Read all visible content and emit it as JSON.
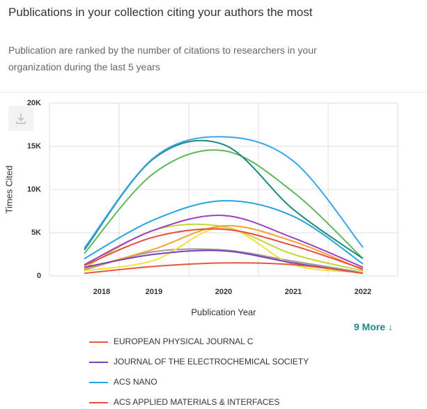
{
  "header": {
    "title": "Publications in your collection citing your authors the most",
    "subtitle": "Publication are ranked by the number of citations to researchers in your organization during the last 5 years"
  },
  "more_link": "9 More ↓",
  "chart_data": {
    "type": "line",
    "xlabel": "Publication Year",
    "ylabel": "Times Cited",
    "categories": [
      "2018",
      "2019",
      "2020",
      "2021",
      "2022"
    ],
    "ylim": [
      0,
      20000
    ],
    "yticks": [
      0,
      {
        "value": 5000,
        "label": "5K"
      },
      {
        "value": 10000,
        "label": "10K"
      },
      {
        "value": 15000,
        "label": "15K"
      },
      {
        "value": 20000,
        "label": "20K"
      }
    ],
    "grid": true,
    "series": [
      {
        "name": "EUROPEAN PHYSICAL JOURNAL C",
        "color": "#e8553e",
        "values": [
          300,
          1100,
          1500,
          1300,
          300
        ]
      },
      {
        "name": "JOURNAL OF THE ELECTROCHEMICAL SOCIETY",
        "color": "#7b3fb5",
        "values": [
          1000,
          2500,
          2900,
          1500,
          300
        ]
      },
      {
        "name": "ACS NANO",
        "color": "#29a3e0",
        "values": [
          2000,
          6500,
          8700,
          6900,
          1400
        ]
      },
      {
        "name": "ACS APPLIED MATERIALS & INTERFACES",
        "color": "#e94b3c",
        "values": [
          1200,
          4500,
          5400,
          3500,
          800
        ]
      },
      {
        "color": "#3aa5ea",
        "values": [
          3200,
          13700,
          16100,
          13300,
          3300
        ]
      },
      {
        "color": "#1a8a7a",
        "values": [
          3000,
          13600,
          15200,
          7700,
          2000
        ]
      },
      {
        "color": "#5cb85c",
        "values": [
          2600,
          11900,
          14500,
          9700,
          2000
        ]
      },
      {
        "color": "#9b3fc4",
        "values": [
          1300,
          5300,
          7000,
          4400,
          1000
        ]
      },
      {
        "color": "#f5a030",
        "values": [
          800,
          3100,
          5800,
          4000,
          700
        ]
      },
      {
        "color": "#c8d43a",
        "values": [
          900,
          5300,
          5700,
          2500,
          600
        ]
      },
      {
        "color": "#f2e040",
        "values": [
          600,
          1800,
          5600,
          1300,
          400
        ]
      },
      {
        "color": "#999999",
        "values": [
          700,
          2800,
          3000,
          1700,
          400
        ]
      }
    ]
  }
}
